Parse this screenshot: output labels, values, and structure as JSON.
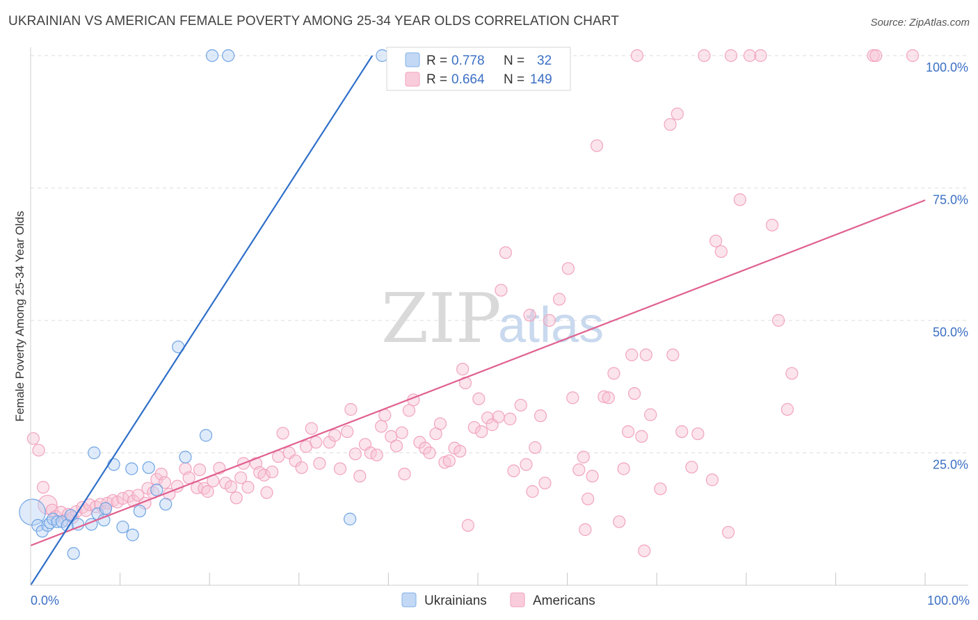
{
  "title": "UKRAINIAN VS AMERICAN FEMALE POVERTY AMONG 25-34 YEAR OLDS CORRELATION CHART",
  "source": "Source: ZipAtlas.com",
  "watermark": {
    "zip": "ZIP",
    "atlas": "atlas"
  },
  "colors": {
    "blue": "#7fb0ea",
    "blue_line": "#2f6fc9",
    "pink": "#f2a3bd",
    "pink_line": "#e0608f",
    "label_blue": "#3b6fc4",
    "grid": "#dcdcdc"
  },
  "stats_box": {
    "rows": [
      {
        "r_label": "R =",
        "r_value": "0.778",
        "n_label": "N =",
        "n_value": "32",
        "series": "blue"
      },
      {
        "r_label": "R =",
        "r_value": "0.664",
        "n_label": "N =",
        "n_value": "149",
        "series": "pink"
      }
    ]
  },
  "chart_data": {
    "type": "scatter",
    "title": "UKRAINIAN VS AMERICAN FEMALE POVERTY AMONG 25-34 YEAR OLDS CORRELATION CHART",
    "xlabel": "",
    "ylabel": "Female Poverty Among 25-34 Year Olds",
    "xlim": [
      0,
      100
    ],
    "ylim": [
      0,
      100
    ],
    "x_tick_labels": [
      {
        "value": 0,
        "label": "0.0%"
      },
      {
        "value": 100,
        "label": "100.0%"
      }
    ],
    "y_tick_labels": [
      {
        "value": 25,
        "label": "25.0%"
      },
      {
        "value": 50,
        "label": "50.0%"
      },
      {
        "value": 75,
        "label": "75.0%"
      },
      {
        "value": 100,
        "label": "100.0%"
      }
    ],
    "grid": true,
    "legend": "bottom-center",
    "series": [
      {
        "name": "Ukrainians",
        "color": "#7fb0ea",
        "r": 0.778,
        "n": 32,
        "trend": [
          [
            0,
            0
          ],
          [
            38.2,
            100
          ]
        ],
        "points": [
          [
            0.2,
            13.8,
            2.2
          ],
          [
            0.8,
            11.3,
            1
          ],
          [
            1.3,
            10.2,
            1
          ],
          [
            1.9,
            11.3,
            1
          ],
          [
            2.2,
            11.8,
            1
          ],
          [
            2.5,
            12.5,
            1
          ],
          [
            3.0,
            12.0,
            1
          ],
          [
            3.5,
            12.0,
            1
          ],
          [
            4.1,
            11.3,
            1
          ],
          [
            4.5,
            13.2,
            1
          ],
          [
            4.8,
            6.0,
            1
          ],
          [
            5.3,
            11.5,
            1
          ],
          [
            6.8,
            11.5,
            1
          ],
          [
            7.1,
            25.0,
            1
          ],
          [
            7.5,
            13.5,
            1
          ],
          [
            8.2,
            12.3,
            1
          ],
          [
            8.4,
            14.5,
            1
          ],
          [
            9.3,
            22.8,
            1
          ],
          [
            10.3,
            11.0,
            1
          ],
          [
            11.3,
            22.0,
            1
          ],
          [
            11.4,
            9.5,
            1
          ],
          [
            12.2,
            14.0,
            1
          ],
          [
            13.2,
            22.2,
            1
          ],
          [
            14.1,
            18.0,
            1
          ],
          [
            15.1,
            15.3,
            1
          ],
          [
            16.5,
            45.0,
            1
          ],
          [
            17.3,
            24.2,
            1
          ],
          [
            19.6,
            28.3,
            1
          ],
          [
            20.3,
            100,
            1
          ],
          [
            22.1,
            100,
            1
          ],
          [
            35.7,
            12.5,
            1
          ],
          [
            39.3,
            100,
            1
          ]
        ]
      },
      {
        "name": "Americans",
        "color": "#f2a3bd",
        "r": 0.664,
        "n": 149,
        "trend": [
          [
            0,
            7.5
          ],
          [
            100,
            72.7
          ]
        ],
        "points": [
          [
            0.3,
            27.7,
            1
          ],
          [
            0.9,
            25.5,
            1
          ],
          [
            1.4,
            18.5,
            1
          ],
          [
            1.9,
            15.2,
            1.6
          ],
          [
            2.4,
            14.2,
            1
          ],
          [
            2.8,
            13.0,
            1
          ],
          [
            3.4,
            13.8,
            1
          ],
          [
            3.9,
            12.3,
            1
          ],
          [
            4.2,
            13.4,
            1
          ],
          [
            4.7,
            12.8,
            1
          ],
          [
            5.1,
            13.9,
            1
          ],
          [
            5.8,
            14.7,
            1
          ],
          [
            6.2,
            14.1,
            1
          ],
          [
            6.6,
            15.2,
            1
          ],
          [
            7.3,
            14.8,
            1
          ],
          [
            7.8,
            15.3,
            1
          ],
          [
            8.3,
            14.0,
            1
          ],
          [
            8.6,
            15.5,
            1
          ],
          [
            9.2,
            16.0,
            1
          ],
          [
            9.7,
            15.7,
            1
          ],
          [
            10.3,
            16.4,
            1
          ],
          [
            11.0,
            16.8,
            1
          ],
          [
            11.5,
            15.9,
            1
          ],
          [
            12.0,
            17.0,
            1
          ],
          [
            12.8,
            15.5,
            1
          ],
          [
            13.1,
            18.3,
            1
          ],
          [
            13.7,
            17.5,
            1
          ],
          [
            14.1,
            20.0,
            1
          ],
          [
            14.6,
            21.0,
            1
          ],
          [
            15.0,
            19.4,
            1
          ],
          [
            15.5,
            17.2,
            1
          ],
          [
            16.4,
            18.7,
            1
          ],
          [
            17.3,
            22.0,
            1
          ],
          [
            17.7,
            20.3,
            1
          ],
          [
            18.6,
            18.4,
            1
          ],
          [
            18.9,
            21.8,
            1
          ],
          [
            19.4,
            18.3,
            1
          ],
          [
            19.8,
            17.7,
            1
          ],
          [
            20.4,
            19.7,
            1
          ],
          [
            21.1,
            22.1,
            1
          ],
          [
            21.8,
            19.3,
            1
          ],
          [
            22.4,
            18.6,
            1
          ],
          [
            23.0,
            16.5,
            1
          ],
          [
            23.5,
            20.3,
            1
          ],
          [
            23.8,
            23.0,
            1
          ],
          [
            24.3,
            18.5,
            1
          ],
          [
            25.2,
            23.0,
            1
          ],
          [
            25.6,
            21.3,
            1
          ],
          [
            26.1,
            20.8,
            1
          ],
          [
            26.4,
            17.5,
            1
          ],
          [
            27.0,
            21.4,
            1
          ],
          [
            27.7,
            24.3,
            1
          ],
          [
            28.2,
            28.7,
            1
          ],
          [
            28.9,
            25.0,
            1
          ],
          [
            29.6,
            23.5,
            1
          ],
          [
            30.3,
            22.2,
            1
          ],
          [
            30.8,
            26.2,
            1
          ],
          [
            31.4,
            29.6,
            1
          ],
          [
            31.9,
            27.0,
            1
          ],
          [
            32.3,
            23.0,
            1
          ],
          [
            33.4,
            27.0,
            1
          ],
          [
            34.0,
            28.3,
            1
          ],
          [
            34.6,
            22.0,
            1
          ],
          [
            35.4,
            29.0,
            1
          ],
          [
            35.8,
            33.2,
            1
          ],
          [
            36.3,
            24.8,
            1
          ],
          [
            36.8,
            20.6,
            1
          ],
          [
            37.4,
            26.6,
            1
          ],
          [
            38.0,
            25.0,
            1
          ],
          [
            38.7,
            24.6,
            1
          ],
          [
            39.2,
            30.0,
            1
          ],
          [
            39.6,
            32.1,
            1
          ],
          [
            40.3,
            28.1,
            1
          ],
          [
            40.9,
            26.3,
            1
          ],
          [
            41.5,
            28.8,
            1
          ],
          [
            41.8,
            21.0,
            1
          ],
          [
            42.3,
            33.0,
            1
          ],
          [
            42.8,
            35.0,
            1
          ],
          [
            43.5,
            27.0,
            1
          ],
          [
            44.1,
            25.9,
            1
          ],
          [
            44.6,
            25.0,
            1
          ],
          [
            45.3,
            28.6,
            1
          ],
          [
            45.8,
            30.5,
            1
          ],
          [
            46.3,
            23.2,
            1
          ],
          [
            46.8,
            23.5,
            1
          ],
          [
            47.4,
            25.9,
            1
          ],
          [
            48.3,
            40.8,
            1
          ],
          [
            48.6,
            38.2,
            1
          ],
          [
            48.9,
            11.3,
            1
          ],
          [
            49.6,
            29.8,
            1
          ],
          [
            50.1,
            35.2,
            1
          ],
          [
            50.4,
            29.0,
            1
          ],
          [
            51.1,
            31.6,
            1
          ],
          [
            51.6,
            30.3,
            1
          ],
          [
            52.3,
            31.8,
            1
          ],
          [
            52.6,
            55.7,
            1
          ],
          [
            53.1,
            62.8,
            1
          ],
          [
            53.6,
            31.4,
            1
          ],
          [
            54.0,
            21.6,
            1
          ],
          [
            54.8,
            34.0,
            1
          ],
          [
            55.4,
            22.8,
            1
          ],
          [
            55.8,
            51.0,
            1
          ],
          [
            56.1,
            17.7,
            1
          ],
          [
            56.4,
            26.0,
            1
          ],
          [
            57.0,
            32.0,
            1
          ],
          [
            57.5,
            19.3,
            1
          ],
          [
            58.0,
            50.0,
            1
          ],
          [
            58.6,
            97.0,
            1
          ],
          [
            59.1,
            54.0,
            1
          ],
          [
            60.1,
            59.8,
            1
          ],
          [
            60.6,
            35.4,
            1
          ],
          [
            61.3,
            21.8,
            1
          ],
          [
            61.8,
            24.2,
            1
          ],
          [
            62.3,
            16.3,
            1
          ],
          [
            62.8,
            20.6,
            1
          ],
          [
            63.3,
            83.0,
            1
          ],
          [
            64.1,
            35.6,
            1
          ],
          [
            64.6,
            35.4,
            1
          ],
          [
            65.2,
            40.0,
            1
          ],
          [
            65.8,
            12.0,
            1
          ],
          [
            66.3,
            22.0,
            1
          ],
          [
            66.8,
            29.0,
            1
          ],
          [
            67.2,
            43.5,
            1
          ],
          [
            67.5,
            36.2,
            1
          ],
          [
            67.8,
            100,
            1
          ],
          [
            68.3,
            28.1,
            1
          ],
          [
            68.8,
            43.5,
            1
          ],
          [
            69.3,
            32.2,
            1
          ],
          [
            70.4,
            18.2,
            1
          ],
          [
            71.5,
            87.0,
            1
          ],
          [
            71.8,
            43.5,
            1
          ],
          [
            72.3,
            89.0,
            1
          ],
          [
            72.8,
            29.0,
            1
          ],
          [
            73.9,
            22.3,
            1
          ],
          [
            74.6,
            28.6,
            1
          ],
          [
            75.3,
            100,
            1
          ],
          [
            76.2,
            19.9,
            1
          ],
          [
            76.6,
            65.0,
            1
          ],
          [
            77.2,
            63.0,
            1
          ],
          [
            78.3,
            100,
            1
          ],
          [
            79.3,
            72.8,
            1
          ],
          [
            80.4,
            100,
            1
          ],
          [
            81.6,
            100,
            1
          ],
          [
            82.9,
            68.0,
            1
          ],
          [
            83.6,
            50.0,
            1
          ],
          [
            84.6,
            33.2,
            1
          ],
          [
            85.1,
            40.0,
            1
          ],
          [
            94.2,
            100,
            1
          ],
          [
            94.5,
            100,
            1
          ],
          [
            98.6,
            100,
            1
          ],
          [
            62.0,
            10.5,
            1
          ],
          [
            68.6,
            6.5,
            1
          ],
          [
            78.0,
            10.0,
            1
          ],
          [
            48.0,
            25.3,
            1
          ]
        ]
      }
    ]
  }
}
